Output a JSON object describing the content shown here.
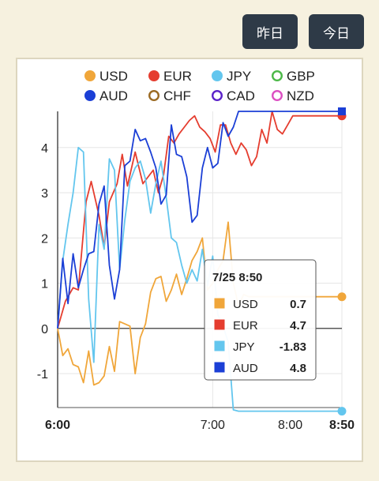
{
  "toolbar": {
    "yesterday_label": "昨日",
    "today_label": "今日"
  },
  "chart_data": {
    "type": "line",
    "x_ticks": [
      "6:00",
      "7:00",
      "8:00",
      "8:50"
    ],
    "x_range_minutes": [
      0,
      110
    ],
    "ylim": [
      -1.75,
      4.8
    ],
    "y_ticks": [
      "-1",
      "0",
      "1",
      "2",
      "3",
      "4"
    ],
    "y_tick_values": [
      -1,
      0,
      1,
      2,
      3,
      4
    ],
    "legend_position": "top",
    "legend": [
      {
        "name": "USD",
        "color": "#f0a63a",
        "filled": true
      },
      {
        "name": "EUR",
        "color": "#e53d2f",
        "filled": true
      },
      {
        "name": "JPY",
        "color": "#63c6ee",
        "filled": true
      },
      {
        "name": "GBP",
        "color": "#4cb848",
        "filled": false
      },
      {
        "name": "AUD",
        "color": "#1b3fd6",
        "filled": true
      },
      {
        "name": "CHF",
        "color": "#9b6a22",
        "filled": false
      },
      {
        "name": "CAD",
        "color": "#5b22c9",
        "filled": false
      },
      {
        "name": "NZD",
        "color": "#dc4fc2",
        "filled": false
      }
    ],
    "series": [
      {
        "name": "USD",
        "color": "#f0a63a",
        "x": [
          0,
          2,
          4,
          6,
          8,
          10,
          12,
          14,
          16,
          18,
          20,
          22,
          24,
          26,
          28,
          30,
          32,
          34,
          36,
          38,
          40,
          42,
          44,
          46,
          48,
          50,
          52,
          54,
          56,
          58,
          60,
          62,
          64,
          66,
          68,
          70,
          72,
          74,
          76,
          78,
          80,
          82,
          84,
          86,
          88,
          90,
          92,
          94,
          96,
          98,
          100,
          102,
          104,
          106,
          108,
          110
        ],
        "y": [
          0,
          -0.6,
          -0.45,
          -0.8,
          -0.85,
          -1.2,
          -0.5,
          -1.25,
          -1.2,
          -1.05,
          -0.4,
          -0.95,
          0.15,
          0.1,
          0.05,
          -1.0,
          -0.2,
          0.1,
          0.8,
          1.1,
          1.15,
          0.6,
          0.85,
          1.2,
          0.75,
          1.1,
          1.5,
          1.7,
          2.0,
          0.85,
          1.0,
          1.3,
          1.5,
          2.35,
          1.0,
          0.5,
          0.75,
          0.7,
          0.7,
          0.7,
          0.7,
          0.7,
          0.7,
          0.7,
          0.7,
          0.7,
          0.7,
          0.7,
          0.7,
          0.7,
          0.7,
          0.7,
          0.7,
          0.7,
          0.7,
          0.7
        ]
      },
      {
        "name": "EUR",
        "color": "#e53d2f",
        "x": [
          0,
          3,
          6,
          8,
          11,
          13,
          16,
          18,
          20,
          23,
          25,
          27,
          30,
          33,
          35,
          37,
          39,
          41,
          43,
          45,
          47,
          49,
          51,
          53,
          55,
          57,
          59,
          61,
          63,
          65,
          67,
          69,
          71,
          73,
          75,
          77,
          79,
          81,
          83,
          85,
          87,
          89,
          91,
          93,
          95,
          97,
          99,
          101,
          103,
          105,
          107,
          109,
          110
        ],
        "y": [
          0,
          0.6,
          0.9,
          0.85,
          2.8,
          3.25,
          2.5,
          1.8,
          2.8,
          3.2,
          3.85,
          3.15,
          3.9,
          3.2,
          3.35,
          3.5,
          3.0,
          3.4,
          4.25,
          4.1,
          4.3,
          4.45,
          4.6,
          4.7,
          4.45,
          4.35,
          4.2,
          3.9,
          4.5,
          4.5,
          4.1,
          3.85,
          4.1,
          3.95,
          3.6,
          3.8,
          4.4,
          4.1,
          4.8,
          4.4,
          4.3,
          4.5,
          4.7,
          4.7,
          4.7,
          4.7,
          4.7,
          4.7,
          4.7,
          4.7,
          4.7,
          4.7,
          4.7
        ]
      },
      {
        "name": "JPY",
        "color": "#63c6ee",
        "x": [
          0,
          2,
          4,
          6,
          8,
          10,
          12,
          14,
          16,
          18,
          20,
          22,
          24,
          26,
          28,
          30,
          32,
          34,
          36,
          38,
          40,
          42,
          44,
          46,
          48,
          50,
          52,
          54,
          56,
          58,
          60,
          62,
          64,
          66,
          68,
          70,
          72,
          74,
          76,
          78,
          80,
          82,
          84,
          86,
          88,
          90,
          92,
          94,
          96,
          98,
          100,
          102,
          104,
          106,
          108,
          110
        ],
        "y": [
          0,
          1.5,
          2.3,
          3.0,
          4.0,
          3.9,
          0.65,
          -0.75,
          2.3,
          1.75,
          3.75,
          3.5,
          1.3,
          2.4,
          3.25,
          3.55,
          3.7,
          3.3,
          2.55,
          3.2,
          3.7,
          2.9,
          2.0,
          1.9,
          1.4,
          1.0,
          1.3,
          1.05,
          1.75,
          0.95,
          1.6,
          0.3,
          0.05,
          -0.3,
          -1.8,
          -1.83,
          -1.83,
          -1.83,
          -1.83,
          -1.83,
          -1.83,
          -1.83,
          -1.83,
          -1.83,
          -1.83,
          -1.83,
          -1.83,
          -1.83,
          -1.83,
          -1.83,
          -1.83,
          -1.83,
          -1.83,
          -1.83,
          -1.83,
          -1.83
        ]
      },
      {
        "name": "AUD",
        "color": "#1b3fd6",
        "x": [
          0,
          2,
          4,
          6,
          8,
          10,
          12,
          14,
          16,
          18,
          20,
          22,
          24,
          26,
          28,
          30,
          32,
          34,
          36,
          38,
          40,
          42,
          44,
          46,
          48,
          50,
          52,
          54,
          56,
          58,
          60,
          62,
          64,
          66,
          68,
          70,
          72,
          74,
          76,
          78,
          80,
          82,
          84,
          86,
          88,
          90,
          92,
          94,
          96,
          98,
          100,
          102,
          104,
          106,
          108,
          110
        ],
        "y": [
          0,
          1.55,
          0.55,
          1.65,
          0.9,
          1.3,
          1.65,
          1.7,
          2.75,
          3.15,
          1.4,
          0.65,
          1.3,
          3.6,
          3.7,
          4.4,
          4.15,
          4.2,
          3.9,
          3.55,
          2.75,
          2.95,
          4.5,
          3.85,
          3.8,
          3.35,
          2.35,
          2.5,
          3.55,
          4.0,
          3.55,
          3.65,
          4.55,
          4.25,
          4.45,
          4.8,
          4.8,
          4.8,
          4.8,
          4.8,
          4.8,
          4.8,
          4.8,
          4.8,
          4.8,
          4.8,
          4.8,
          4.8,
          4.8,
          4.8,
          4.8,
          4.8,
          4.8,
          4.8,
          4.8,
          4.8
        ]
      }
    ],
    "tooltip": {
      "title": "7/25 8:50",
      "rows": [
        {
          "name": "USD",
          "value": "0.7",
          "color": "#f0a63a"
        },
        {
          "name": "EUR",
          "value": "4.7",
          "color": "#e53d2f"
        },
        {
          "name": "JPY",
          "value": "-1.83",
          "color": "#63c6ee"
        },
        {
          "name": "AUD",
          "value": "4.8",
          "color": "#1b3fd6"
        }
      ]
    }
  }
}
